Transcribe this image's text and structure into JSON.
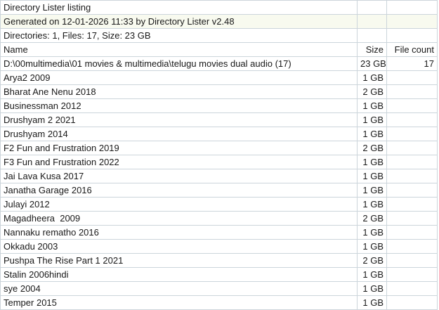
{
  "meta": {
    "title": "Directory Lister listing",
    "generated": "Generated on 12-01-2026 11:33 by Directory Lister v2.48",
    "summary": "Directories: 1, Files: 17, Size: 23 GB"
  },
  "columns": {
    "name": "Name",
    "size": "Size",
    "file_count": "File count"
  },
  "directory": {
    "name": "D:\\00multimedia\\01 movies & multimedia\\telugu movies dual audio (17)",
    "size": "23 GB",
    "file_count": "17"
  },
  "files": [
    {
      "name": "Arya2 2009",
      "size": "1 GB"
    },
    {
      "name": "Bharat Ane Nenu 2018",
      "size": "2 GB"
    },
    {
      "name": "Businessman 2012",
      "size": "1 GB"
    },
    {
      "name": "Drushyam 2 2021",
      "size": "1 GB"
    },
    {
      "name": "Drushyam 2014",
      "size": "1 GB"
    },
    {
      "name": "F2 Fun and Frustration 2019",
      "size": "2 GB"
    },
    {
      "name": "F3 Fun and Frustration 2022",
      "size": "1 GB"
    },
    {
      "name": "Jai Lava Kusa 2017",
      "size": "1 GB"
    },
    {
      "name": "Janatha Garage 2016",
      "size": "1 GB"
    },
    {
      "name": "Julayi 2012",
      "size": "1 GB"
    },
    {
      "name": "Magadheera  2009",
      "size": "2 GB"
    },
    {
      "name": "Nannaku rematho 2016",
      "size": "1 GB"
    },
    {
      "name": "Okkadu 2003",
      "size": "1 GB"
    },
    {
      "name": "Pushpa The Rise Part 1 2021",
      "size": "2 GB"
    },
    {
      "name": "Stalin 2006hindi",
      "size": "1 GB"
    },
    {
      "name": "sye 2004",
      "size": "1 GB"
    },
    {
      "name": "Temper 2015",
      "size": "1 GB"
    }
  ],
  "colors": {
    "gridline": "#ccd5db",
    "generated_row_background": "#f8faef",
    "text": "#191919",
    "background": "#ffffff"
  }
}
